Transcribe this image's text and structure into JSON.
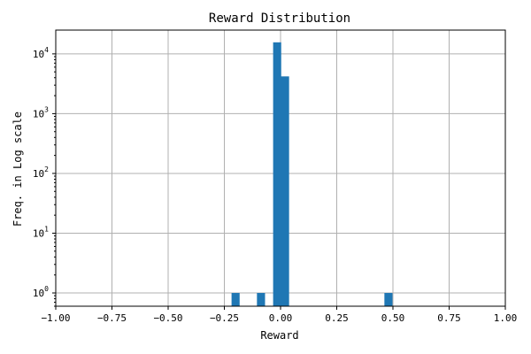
{
  "chart_data": {
    "type": "bar",
    "title": "Reward Distribution",
    "xlabel": "Reward",
    "ylabel": "Freq. in Log scale",
    "xlim": [
      -1.0,
      1.0
    ],
    "ylim": [
      0.6,
      25000
    ],
    "yscale": "log",
    "grid": true,
    "bar_color": "#1f77b4",
    "bin_width": 0.036,
    "bins": [
      {
        "x": -0.2,
        "count": 1
      },
      {
        "x": -0.087,
        "count": 1
      },
      {
        "x": -0.015,
        "count": 15600
      },
      {
        "x": 0.02,
        "count": 4200
      },
      {
        "x": 0.48,
        "count": 1
      }
    ],
    "x_ticks": [
      {
        "value": -1.0,
        "label": "−1.00"
      },
      {
        "value": -0.75,
        "label": "−0.75"
      },
      {
        "value": -0.5,
        "label": "−0.50"
      },
      {
        "value": -0.25,
        "label": "−0.25"
      },
      {
        "value": 0.0,
        "label": "0.00"
      },
      {
        "value": 0.25,
        "label": "0.25"
      },
      {
        "value": 0.5,
        "label": "0.50"
      },
      {
        "value": 0.75,
        "label": "0.75"
      },
      {
        "value": 1.0,
        "label": "1.00"
      }
    ],
    "y_ticks": [
      {
        "value": 1,
        "base": "10",
        "exp": "0"
      },
      {
        "value": 10,
        "base": "10",
        "exp": "1"
      },
      {
        "value": 100,
        "base": "10",
        "exp": "2"
      },
      {
        "value": 1000,
        "base": "10",
        "exp": "3"
      },
      {
        "value": 10000,
        "base": "10",
        "exp": "4"
      }
    ]
  }
}
